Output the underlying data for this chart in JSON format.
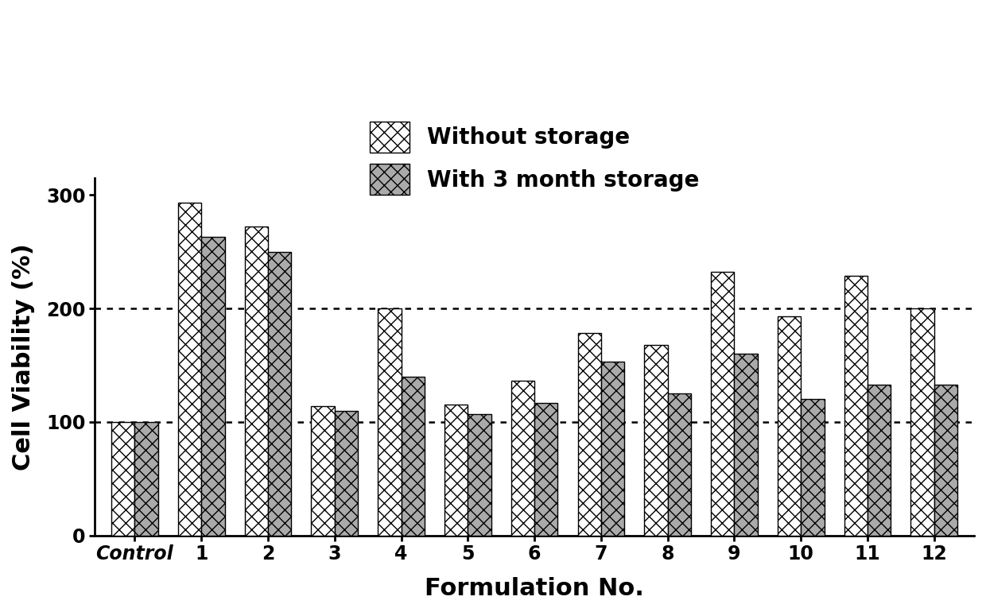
{
  "categories": [
    "Control",
    "1",
    "2",
    "3",
    "4",
    "5",
    "6",
    "7",
    "8",
    "9",
    "10",
    "11",
    "12"
  ],
  "without_storage": [
    100,
    293,
    272,
    114,
    200,
    115,
    136,
    178,
    168,
    232,
    193,
    229,
    200
  ],
  "with_storage": [
    100,
    263,
    250,
    110,
    140,
    107,
    117,
    153,
    125,
    160,
    120,
    133,
    133
  ],
  "ylabel": "Cell Viability (%)",
  "xlabel": "Formulation No.",
  "legend1": "Without storage",
  "legend2": "With 3 month storage",
  "yticks": [
    0,
    100,
    200,
    300
  ],
  "ylim": [
    0,
    315
  ],
  "hlines": [
    100,
    200
  ],
  "bar_width": 0.35,
  "bg_color": "#ffffff",
  "label_fontsize": 22,
  "tick_fontsize": 17,
  "legend_fontsize": 20
}
